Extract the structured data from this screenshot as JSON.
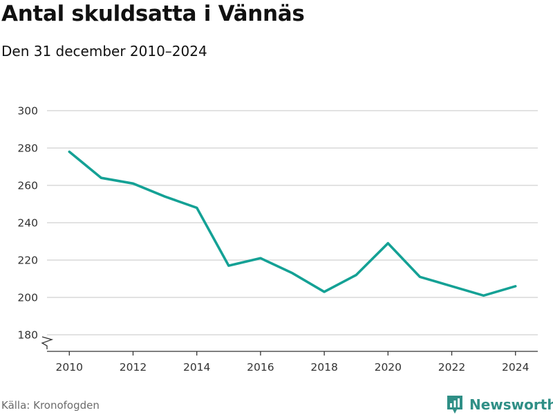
{
  "header": {
    "title": "Antal skuldsatta i Vännäs",
    "subtitle": "Den 31 december 2010–2024"
  },
  "footer": {
    "source": "Källa: Kronofogden",
    "brand": "Newsworthy"
  },
  "colors": {
    "line": "#14a195",
    "grid": "#d9d9d9",
    "axis": "#333333",
    "brand": "#2f8f86"
  },
  "chart_data": {
    "type": "line",
    "title": "Antal skuldsatta i Vännäs",
    "subtitle": "Den 31 december 2010–2024",
    "xlabel": "",
    "ylabel": "",
    "x": [
      2010,
      2011,
      2012,
      2013,
      2014,
      2015,
      2016,
      2017,
      2018,
      2019,
      2020,
      2021,
      2022,
      2023,
      2024
    ],
    "series": [
      {
        "values": [
          278,
          264,
          261,
          254,
          248,
          217,
          221,
          213,
          203,
          212,
          229,
          211,
          206,
          201,
          206
        ]
      }
    ],
    "ylim": [
      180,
      300
    ],
    "yticks": [
      180,
      200,
      220,
      240,
      260,
      280,
      300
    ],
    "xticks": [
      2010,
      2012,
      2014,
      2016,
      2018,
      2020,
      2022,
      2024
    ],
    "xlim": [
      2009.3,
      2024.7
    ],
    "axis_break": true,
    "grid": true,
    "legend": "none"
  }
}
